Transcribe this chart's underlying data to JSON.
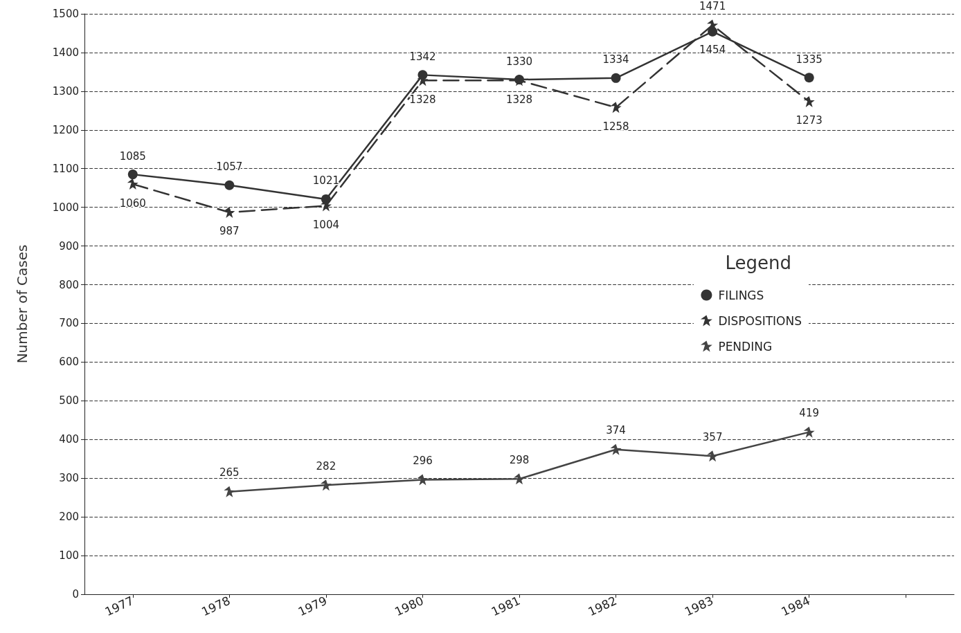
{
  "chart_data": {
    "type": "line",
    "ylabel": "Number of Cases",
    "legend_title": "Legend",
    "categories": [
      "1977",
      "1978",
      "1979",
      "1980",
      "1981",
      "1982",
      "1983",
      "1984"
    ],
    "series": [
      {
        "name": "FILINGS",
        "color": "#333333",
        "marker": "circle",
        "line_style": "solid",
        "values": [
          1085,
          1057,
          1021,
          1342,
          1330,
          1334,
          1454,
          1335
        ]
      },
      {
        "name": "DISPOSITIONS",
        "color": "#333333",
        "marker": "star",
        "line_style": "dashed",
        "values": [
          1060,
          987,
          1004,
          1328,
          1328,
          1258,
          1471,
          1273
        ]
      },
      {
        "name": "PENDING",
        "color": "#444444",
        "marker": "star",
        "line_style": "solid",
        "values": [
          null,
          265,
          282,
          296,
          298,
          374,
          357,
          419
        ]
      }
    ],
    "ylim": [
      0,
      1500
    ],
    "yticks": [
      0,
      100,
      200,
      300,
      400,
      500,
      600,
      700,
      800,
      900,
      1000,
      1100,
      1200,
      1300,
      1400,
      1500
    ],
    "grid": "y",
    "legend": "right",
    "data_labels": true
  }
}
